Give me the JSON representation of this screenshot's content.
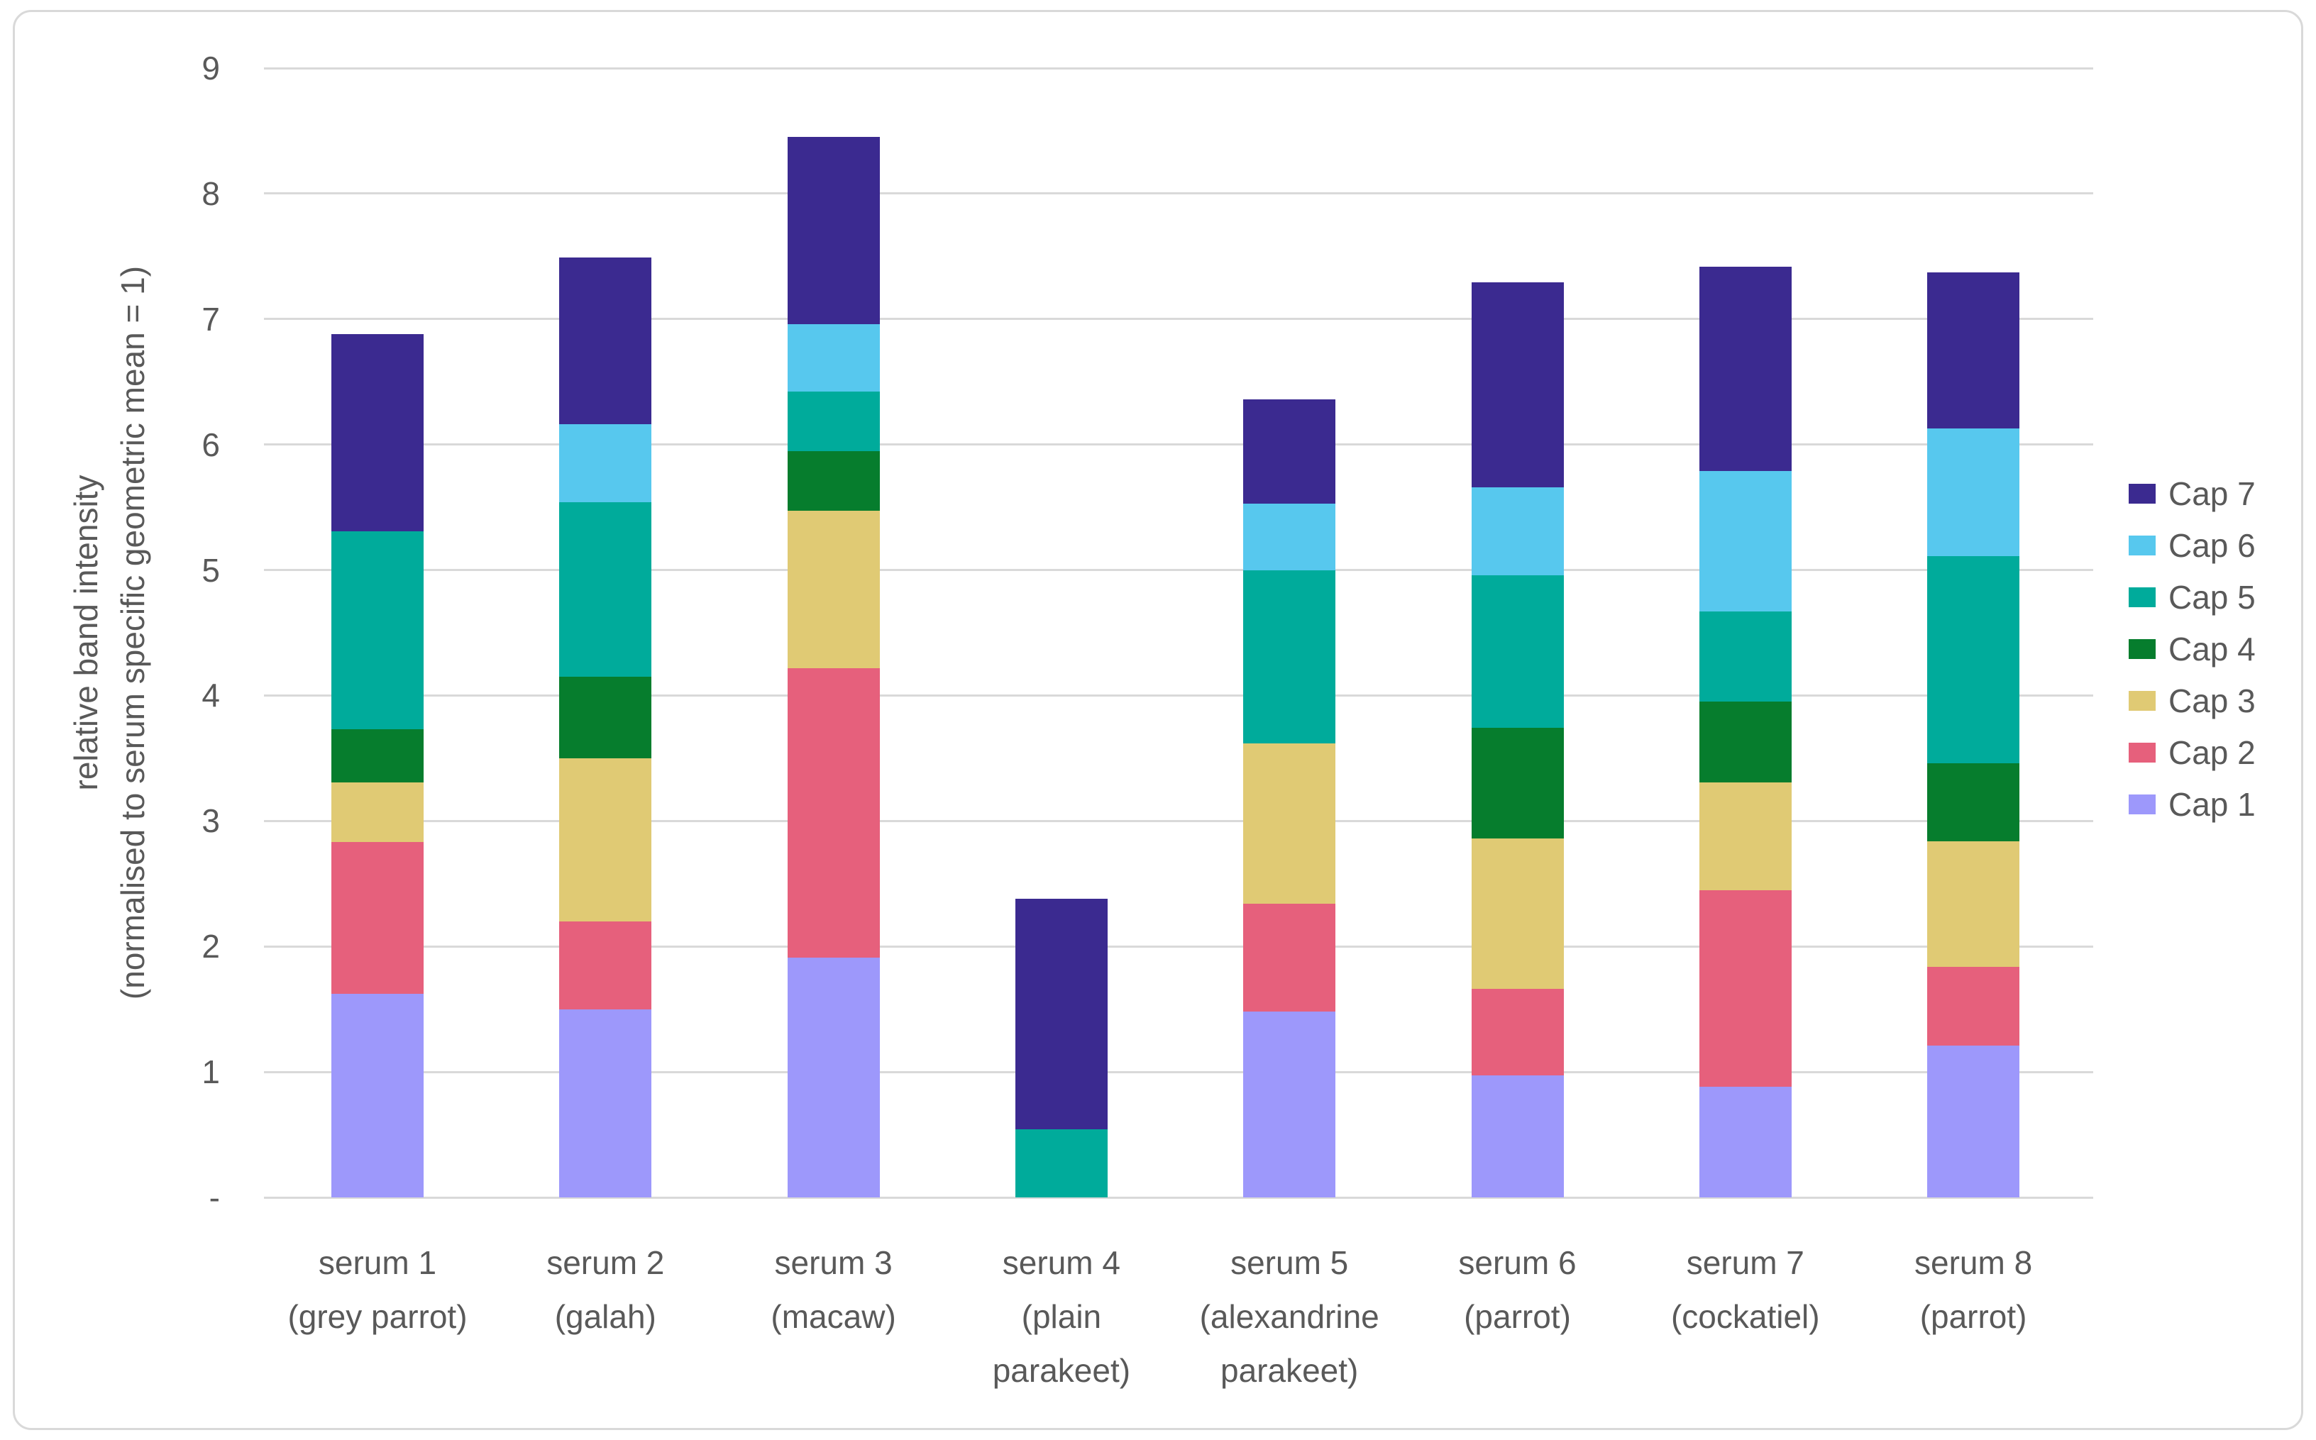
{
  "chart_data": {
    "type": "bar",
    "stacked": true,
    "ylabel_lines": [
      "relative band intensity",
      "(normalised to serum specific geometric mean = 1)"
    ],
    "ylim": [
      0,
      9
    ],
    "grid": true,
    "legend_position": "right",
    "axis_text_color": "#595959",
    "gridline_color": "#d9d9d9",
    "yticks": [
      {
        "value": 0,
        "label": "-"
      },
      {
        "value": 1,
        "label": "1"
      },
      {
        "value": 2,
        "label": "2"
      },
      {
        "value": 3,
        "label": "3"
      },
      {
        "value": 4,
        "label": "4"
      },
      {
        "value": 5,
        "label": "5"
      },
      {
        "value": 6,
        "label": "6"
      },
      {
        "value": 7,
        "label": "7"
      },
      {
        "value": 8,
        "label": "8"
      },
      {
        "value": 9,
        "label": "9"
      }
    ],
    "categories": [
      {
        "lines": [
          "serum 1",
          "(grey parrot)"
        ]
      },
      {
        "lines": [
          "serum 2",
          "(galah)"
        ]
      },
      {
        "lines": [
          "serum 3",
          "(macaw)"
        ]
      },
      {
        "lines": [
          "serum 4",
          "(plain",
          "parakeet)"
        ]
      },
      {
        "lines": [
          "serum 5",
          "(alexandrine",
          "parakeet)"
        ]
      },
      {
        "lines": [
          "serum 6",
          "(parrot)"
        ]
      },
      {
        "lines": [
          "serum 7",
          "(cockatiel)"
        ]
      },
      {
        "lines": [
          "serum 8",
          "(parrot)"
        ]
      }
    ],
    "series": [
      {
        "name": "Cap 1",
        "color": "#9d98fb",
        "values": [
          1.62,
          1.5,
          1.91,
          0,
          1.48,
          0.97,
          0.88,
          1.21
        ]
      },
      {
        "name": "Cap 2",
        "color": "#e6607c",
        "values": [
          1.21,
          0.7,
          2.31,
          0,
          0.86,
          0.69,
          1.57,
          0.63
        ]
      },
      {
        "name": "Cap 3",
        "color": "#e0ca74",
        "values": [
          0.48,
          1.3,
          1.25,
          0,
          1.28,
          1.2,
          0.86,
          1.0
        ]
      },
      {
        "name": "Cap 4",
        "color": "#067d2d",
        "values": [
          0.42,
          0.65,
          0.48,
          0,
          0,
          0.88,
          0.64,
          0.62
        ]
      },
      {
        "name": "Cap 5",
        "color": "#00ab9b",
        "values": [
          1.58,
          1.39,
          0.47,
          0.54,
          1.38,
          1.22,
          0.72,
          1.65
        ]
      },
      {
        "name": "Cap 6",
        "color": "#57c8ee",
        "values": [
          0,
          0.62,
          0.54,
          0,
          0.53,
          0.7,
          1.12,
          1.02
        ]
      },
      {
        "name": "Cap 7",
        "color": "#3b2a90",
        "values": [
          1.57,
          1.33,
          1.49,
          1.84,
          0.83,
          1.63,
          1.63,
          1.24
        ]
      }
    ],
    "legend_order_top_to_bottom": [
      "Cap 7",
      "Cap 6",
      "Cap 5",
      "Cap 4",
      "Cap 3",
      "Cap 2",
      "Cap 1"
    ]
  },
  "layout_note_values_are_relative_band_intensity": "stacked totals: 6.88, 7.49, 8.45, 2.38, 6.36, 7.29, 7.42, 7.37"
}
